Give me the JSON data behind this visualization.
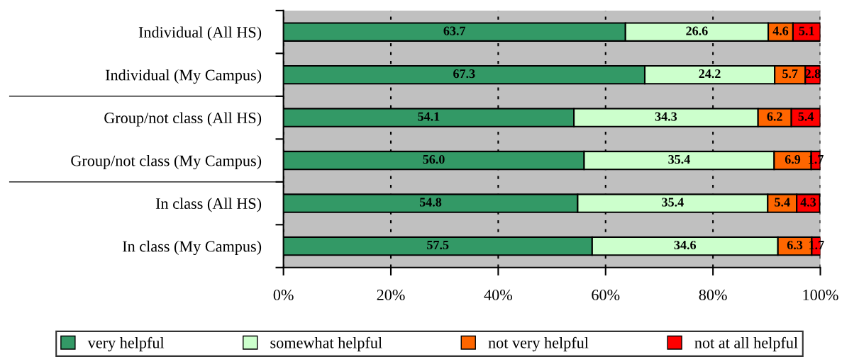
{
  "chart_data": {
    "type": "bar",
    "orientation": "horizontal",
    "stacked": true,
    "categories": [
      "Individual (All HS)",
      "Individual (My Campus)",
      "Group/not class (All HS)",
      "Group/not class (My Campus)",
      "In class (All HS)",
      "In class (My Campus)"
    ],
    "series": [
      {
        "name": "very helpful",
        "color": "#339966",
        "values": [
          63.7,
          67.3,
          54.1,
          56.0,
          54.8,
          57.5
        ],
        "value_labels": [
          "63.7",
          "67.3",
          "54.1",
          "56.0",
          "54.8",
          "57.5"
        ]
      },
      {
        "name": "somewhat helpful",
        "color": "#ccffcc",
        "values": [
          26.6,
          24.2,
          34.3,
          35.4,
          35.4,
          34.6
        ],
        "value_labels": [
          "26.6",
          "24.2",
          "34.3",
          "35.4",
          "35.4",
          "34.6"
        ]
      },
      {
        "name": "not very helpful",
        "color": "#ff6600",
        "values": [
          4.6,
          5.7,
          6.2,
          6.9,
          5.4,
          6.3
        ],
        "value_labels": [
          "4.6",
          "5.7",
          "6.2",
          "6.9",
          "5.4",
          "6.3"
        ]
      },
      {
        "name": "not at all helpful",
        "color": "#ff0000",
        "values": [
          5.1,
          2.8,
          5.4,
          1.7,
          4.3,
          1.7
        ],
        "value_labels": [
          "5.1",
          "2.8",
          "5.4",
          "1.7",
          "4.3",
          "1.7"
        ]
      }
    ],
    "xlim": [
      0,
      100
    ],
    "xticks": [
      {
        "value": 0,
        "label": "0%"
      },
      {
        "value": 20,
        "label": "20%"
      },
      {
        "value": 40,
        "label": "40%"
      },
      {
        "value": 60,
        "label": "60%"
      },
      {
        "value": 80,
        "label": "80%"
      },
      {
        "value": 100,
        "label": "100%"
      }
    ],
    "grid": "x",
    "legend": "bottom"
  }
}
